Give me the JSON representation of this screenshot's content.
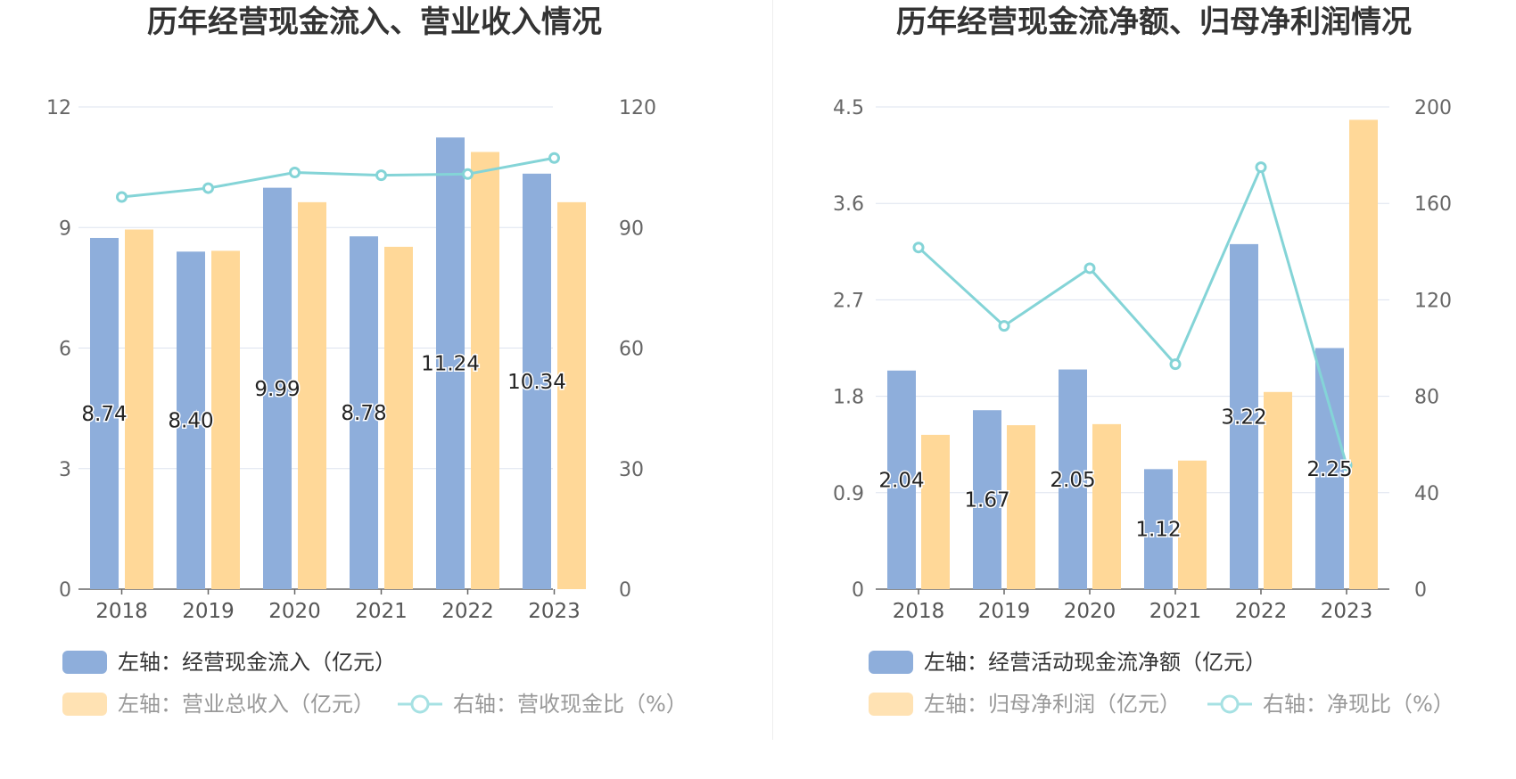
{
  "colors": {
    "blue": "#8eaedb",
    "orange": "#ffd898",
    "teal": "#84d4d7",
    "grid": "#dde3ef",
    "axis": "#666666"
  },
  "chart_data": [
    {
      "type": "bar",
      "title": "历年经营现金流入、营业收入情况",
      "categories": [
        "2018",
        "2019",
        "2020",
        "2021",
        "2022",
        "2023"
      ],
      "left_axis": {
        "ticks": [
          "0",
          "3",
          "6",
          "9",
          "12"
        ],
        "range": [
          0,
          12
        ]
      },
      "right_axis": {
        "ticks": [
          "0",
          "30",
          "60",
          "90",
          "120"
        ],
        "range": [
          0,
          120
        ]
      },
      "series": [
        {
          "name": "左轴：经营现金流入（亿元）",
          "axis": "left",
          "type": "bar",
          "color": "#8eaedb",
          "values": [
            8.74,
            8.4,
            9.99,
            8.78,
            11.24,
            10.34
          ],
          "labels": [
            "8.74",
            "8.40",
            "9.99",
            "8.78",
            "11.24",
            "10.34"
          ]
        },
        {
          "name": "左轴：营业总收入（亿元）",
          "axis": "left",
          "type": "bar",
          "color": "#ffd898",
          "values": [
            8.95,
            8.42,
            9.63,
            8.52,
            10.88,
            9.63
          ]
        },
        {
          "name": "右轴：营收现金比（%）",
          "axis": "right",
          "type": "line",
          "color": "#84d4d7",
          "values": [
            97.6,
            99.8,
            103.7,
            103.0,
            103.3,
            107.3
          ]
        }
      ],
      "legend": {
        "row1": [
          {
            "label": "左轴：经营现金流入（亿元）",
            "kind": "rect",
            "color": "#8eaedb",
            "dim": false
          }
        ],
        "row2": [
          {
            "label": "左轴：营业总收入（亿元）",
            "kind": "rect",
            "color": "#ffe2b3",
            "dim": true
          },
          {
            "label": "右轴：营收现金比（%）",
            "kind": "line",
            "color": "#a6e1e3",
            "dim": true
          }
        ]
      }
    },
    {
      "type": "bar",
      "title": "历年经营现金流净额、归母净利润情况",
      "categories": [
        "2018",
        "2019",
        "2020",
        "2021",
        "2022",
        "2023"
      ],
      "left_axis": {
        "ticks": [
          "0",
          "0.9",
          "1.8",
          "2.7",
          "3.6",
          "4.5"
        ],
        "range": [
          0,
          4.5
        ]
      },
      "right_axis": {
        "ticks": [
          "0",
          "40",
          "80",
          "120",
          "160",
          "200"
        ],
        "range": [
          0,
          200
        ]
      },
      "series": [
        {
          "name": "左轴：经营活动现金流净额（亿元）",
          "axis": "left",
          "type": "bar",
          "color": "#8eaedb",
          "values": [
            2.04,
            1.67,
            2.05,
            1.12,
            3.22,
            2.25
          ],
          "labels": [
            "2.04",
            "1.67",
            "2.05",
            "1.12",
            "3.22",
            "2.25"
          ]
        },
        {
          "name": "左轴：归母净利润（亿元）",
          "axis": "left",
          "type": "bar",
          "color": "#ffd898",
          "values": [
            1.44,
            1.53,
            1.54,
            1.2,
            1.84,
            4.38
          ]
        },
        {
          "name": "右轴：净现比（%）",
          "axis": "right",
          "type": "line",
          "color": "#84d4d7",
          "values": [
            141.7,
            109.2,
            133.1,
            93.3,
            175.0,
            51.4
          ]
        }
      ],
      "legend": {
        "row1": [
          {
            "label": "左轴：经营活动现金流净额（亿元）",
            "kind": "rect",
            "color": "#8eaedb",
            "dim": false
          }
        ],
        "row2": [
          {
            "label": "左轴：归母净利润（亿元）",
            "kind": "rect",
            "color": "#ffe2b3",
            "dim": true
          },
          {
            "label": "右轴：净现比（%）",
            "kind": "line",
            "color": "#a6e1e3",
            "dim": true
          }
        ]
      }
    }
  ]
}
